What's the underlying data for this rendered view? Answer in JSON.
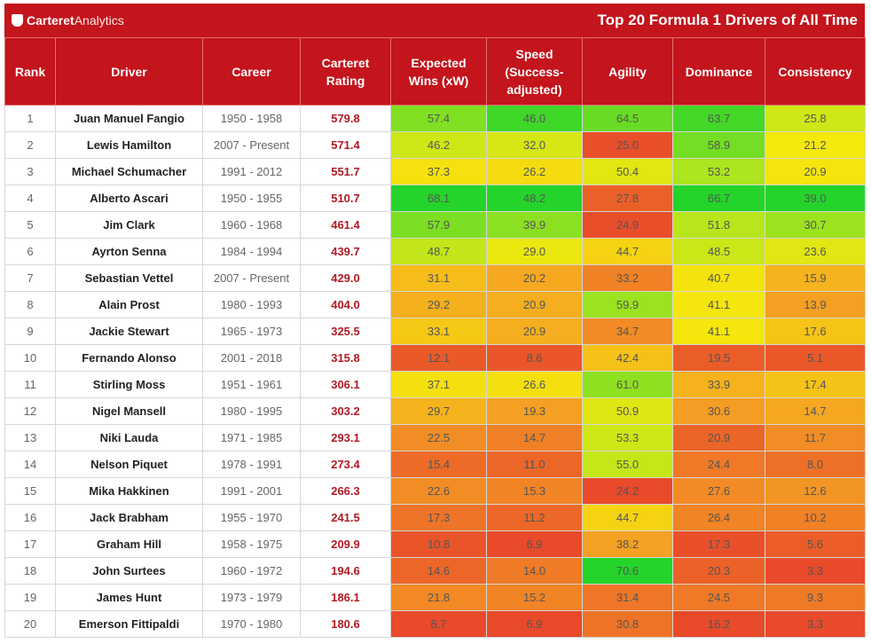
{
  "header": {
    "brand_bold": "Carteret",
    "brand_light": "Analytics",
    "title": "Top 20 Formula 1 Drivers of All Time"
  },
  "table": {
    "columns": [
      "Rank",
      "Driver",
      "Career",
      "Carteret Rating",
      "Expected Wins (xW)",
      "Speed (Success-adjusted)",
      "Agility",
      "Dominance",
      "Consistency"
    ],
    "rows": [
      [
        1,
        "Juan Manuel Fangio",
        "1950 - 1958",
        "579.8",
        "57.4",
        "46.0",
        "64.5",
        "63.7",
        "25.8"
      ],
      [
        2,
        "Lewis Hamilton",
        "2007 - Present",
        "571.4",
        "46.2",
        "32.0",
        "25.0",
        "58.9",
        "21.2"
      ],
      [
        3,
        "Michael Schumacher",
        "1991 - 2012",
        "551.7",
        "37.3",
        "26.2",
        "50.4",
        "53.2",
        "20.9"
      ],
      [
        4,
        "Alberto Ascari",
        "1950 - 1955",
        "510.7",
        "68.1",
        "48.2",
        "27.8",
        "66.7",
        "39.0"
      ],
      [
        5,
        "Jim Clark",
        "1960 - 1968",
        "461.4",
        "57.9",
        "39.9",
        "24.9",
        "51.8",
        "30.7"
      ],
      [
        6,
        "Ayrton Senna",
        "1984 - 1994",
        "439.7",
        "48.7",
        "29.0",
        "44.7",
        "48.5",
        "23.6"
      ],
      [
        7,
        "Sebastian Vettel",
        "2007 - Present",
        "429.0",
        "31.1",
        "20.2",
        "33.2",
        "40.7",
        "15.9"
      ],
      [
        8,
        "Alain Prost",
        "1980 - 1993",
        "404.0",
        "29.2",
        "20.9",
        "59.9",
        "41.1",
        "13.9"
      ],
      [
        9,
        "Jackie Stewart",
        "1965 - 1973",
        "325.5",
        "33.1",
        "20.9",
        "34.7",
        "41.1",
        "17.6"
      ],
      [
        10,
        "Fernando Alonso",
        "2001 - 2018",
        "315.8",
        "12.1",
        "8.6",
        "42.4",
        "19.5",
        "5.1"
      ],
      [
        11,
        "Stirling Moss",
        "1951 - 1961",
        "306.1",
        "37.1",
        "26.6",
        "61.0",
        "33.9",
        "17.4"
      ],
      [
        12,
        "Nigel Mansell",
        "1980 - 1995",
        "303.2",
        "29.7",
        "19.3",
        "50.9",
        "30.6",
        "14.7"
      ],
      [
        13,
        "Niki Lauda",
        "1971 - 1985",
        "293.1",
        "22.5",
        "14.7",
        "53.3",
        "20.9",
        "11.7"
      ],
      [
        14,
        "Nelson Piquet",
        "1978 - 1991",
        "273.4",
        "15.4",
        "11.0",
        "55.0",
        "24.4",
        "8.0"
      ],
      [
        15,
        "Mika Hakkinen",
        "1991 - 2001",
        "266.3",
        "22.6",
        "15.3",
        "24.2",
        "27.6",
        "12.6"
      ],
      [
        16,
        "Jack Brabham",
        "1955 - 1970",
        "241.5",
        "17.3",
        "11.2",
        "44.7",
        "26.4",
        "10.2"
      ],
      [
        17,
        "Graham Hill",
        "1958 - 1975",
        "209.9",
        "10.8",
        "6.9",
        "38.2",
        "17.3",
        "5.6"
      ],
      [
        18,
        "John Surtees",
        "1960 - 1972",
        "194.6",
        "14.6",
        "14.0",
        "70.6",
        "20.3",
        "3.3"
      ],
      [
        19,
        "James Hunt",
        "1973 - 1979",
        "186.1",
        "21.8",
        "15.2",
        "31.4",
        "24.5",
        "9.3"
      ],
      [
        20,
        "Emerson Fittipaldi",
        "1970 - 1980",
        "180.6",
        "8.7",
        "6.9",
        "30.8",
        "16.2",
        "3.3"
      ]
    ]
  }
}
